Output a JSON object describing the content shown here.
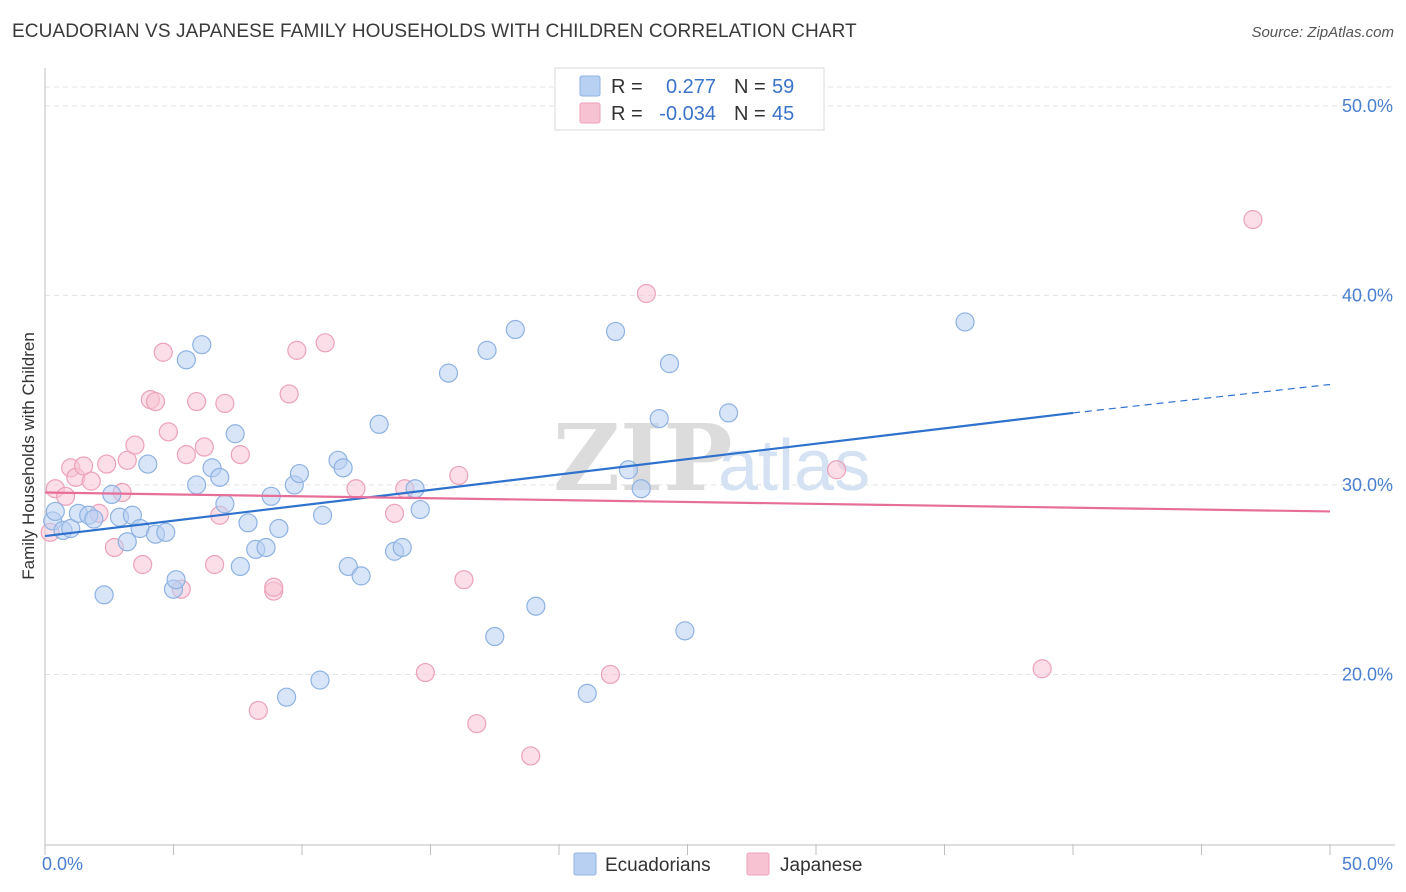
{
  "title": "ECUADORIAN VS JAPANESE FAMILY HOUSEHOLDS WITH CHILDREN CORRELATION CHART",
  "source": "Source: ZipAtlas.com",
  "watermark": {
    "zip": "ZIP",
    "atlas": "atlas"
  },
  "legend": {
    "r_label": "R =",
    "n_label": "N =",
    "rows": [
      {
        "series": "Ecuadorians",
        "r": "0.277",
        "n": "59"
      },
      {
        "series": "Japanese",
        "r": "-0.034",
        "n": "45"
      }
    ]
  },
  "colors": {
    "ecuadorians_fill": "#b8d0f2",
    "ecuadorians_stroke": "#8fb2e2",
    "ecuadorians_line": "#2f72cd",
    "japanese_fill": "#f7c3d3",
    "japanese_stroke": "#eba2ba",
    "japanese_line": "#e76e98"
  },
  "chart_data": {
    "type": "scatter",
    "title": "ECUADORIAN VS JAPANESE FAMILY HOUSEHOLDS WITH CHILDREN CORRELATION CHART",
    "xlabel": "",
    "ylabel": "Family Households with Children",
    "xlim": [
      0,
      50
    ],
    "ylim": [
      11,
      52
    ],
    "x_tick_labels": [
      "0.0%",
      "50.0%"
    ],
    "y_ticks": [
      20,
      30,
      40,
      50
    ],
    "y_tick_labels": [
      "20.0%",
      "30.0%",
      "40.0%",
      "50.0%"
    ],
    "grid": true,
    "legend_position": "top-center",
    "series": [
      {
        "name": "Ecuadorians",
        "trend": {
          "x": [
            0,
            40,
            50
          ],
          "y": [
            27.3,
            33.8,
            35.3
          ],
          "solid_until": 40
        },
        "points": [
          [
            0.3,
            28.1
          ],
          [
            0.4,
            28.6
          ],
          [
            0.7,
            27.6
          ],
          [
            1.0,
            27.7
          ],
          [
            1.3,
            28.5
          ],
          [
            1.7,
            28.4
          ],
          [
            1.9,
            28.2
          ],
          [
            2.3,
            24.2
          ],
          [
            2.6,
            29.5
          ],
          [
            2.9,
            28.3
          ],
          [
            3.2,
            27.0
          ],
          [
            3.4,
            28.4
          ],
          [
            3.7,
            27.7
          ],
          [
            4.0,
            31.1
          ],
          [
            4.3,
            27.4
          ],
          [
            4.7,
            27.5
          ],
          [
            5.0,
            24.5
          ],
          [
            5.1,
            25.0
          ],
          [
            5.5,
            36.6
          ],
          [
            5.9,
            30.0
          ],
          [
            6.1,
            37.4
          ],
          [
            6.5,
            30.9
          ],
          [
            6.8,
            30.4
          ],
          [
            7.0,
            29.0
          ],
          [
            7.4,
            32.7
          ],
          [
            7.6,
            25.7
          ],
          [
            7.9,
            28.0
          ],
          [
            8.2,
            26.6
          ],
          [
            8.6,
            26.7
          ],
          [
            8.8,
            29.4
          ],
          [
            9.1,
            27.7
          ],
          [
            9.4,
            18.8
          ],
          [
            9.7,
            30.0
          ],
          [
            9.9,
            30.6
          ],
          [
            10.7,
            19.7
          ],
          [
            10.8,
            28.4
          ],
          [
            11.4,
            31.3
          ],
          [
            11.6,
            30.9
          ],
          [
            11.8,
            25.7
          ],
          [
            12.3,
            25.2
          ],
          [
            13.0,
            33.2
          ],
          [
            13.6,
            26.5
          ],
          [
            13.9,
            26.7
          ],
          [
            14.4,
            29.8
          ],
          [
            14.6,
            28.7
          ],
          [
            15.7,
            35.9
          ],
          [
            17.2,
            37.1
          ],
          [
            17.5,
            22.0
          ],
          [
            18.3,
            38.2
          ],
          [
            19.1,
            23.6
          ],
          [
            21.1,
            19.0
          ],
          [
            22.2,
            38.1
          ],
          [
            22.7,
            30.8
          ],
          [
            23.2,
            29.8
          ],
          [
            23.9,
            33.5
          ],
          [
            24.3,
            36.4
          ],
          [
            24.9,
            22.3
          ],
          [
            26.6,
            33.8
          ],
          [
            35.8,
            38.6
          ]
        ]
      },
      {
        "name": "Japanese",
        "trend": {
          "x": [
            0,
            50
          ],
          "y": [
            29.6,
            28.6
          ]
        },
        "points": [
          [
            0.2,
            27.5
          ],
          [
            0.4,
            29.8
          ],
          [
            0.8,
            29.4
          ],
          [
            1.0,
            30.9
          ],
          [
            1.2,
            30.4
          ],
          [
            1.5,
            31.0
          ],
          [
            1.8,
            30.2
          ],
          [
            2.1,
            28.5
          ],
          [
            2.4,
            31.1
          ],
          [
            2.7,
            26.7
          ],
          [
            3.0,
            29.6
          ],
          [
            3.2,
            31.3
          ],
          [
            3.5,
            32.1
          ],
          [
            3.8,
            25.8
          ],
          [
            4.1,
            34.5
          ],
          [
            4.3,
            34.4
          ],
          [
            4.6,
            37.0
          ],
          [
            4.8,
            32.8
          ],
          [
            5.3,
            24.5
          ],
          [
            5.5,
            31.6
          ],
          [
            5.9,
            34.4
          ],
          [
            6.2,
            32.0
          ],
          [
            6.6,
            25.8
          ],
          [
            6.8,
            28.4
          ],
          [
            7.0,
            34.3
          ],
          [
            7.6,
            31.6
          ],
          [
            8.3,
            18.1
          ],
          [
            8.9,
            24.4
          ],
          [
            8.9,
            24.6
          ],
          [
            9.5,
            34.8
          ],
          [
            9.8,
            37.1
          ],
          [
            10.9,
            37.5
          ],
          [
            12.1,
            29.8
          ],
          [
            13.6,
            28.5
          ],
          [
            14.0,
            29.8
          ],
          [
            14.8,
            20.1
          ],
          [
            16.1,
            30.5
          ],
          [
            16.3,
            25.0
          ],
          [
            16.8,
            17.4
          ],
          [
            18.9,
            15.7
          ],
          [
            22.0,
            20.0
          ],
          [
            23.4,
            40.1
          ],
          [
            30.8,
            30.8
          ],
          [
            38.8,
            20.3
          ],
          [
            47.0,
            44.0
          ]
        ]
      }
    ]
  }
}
